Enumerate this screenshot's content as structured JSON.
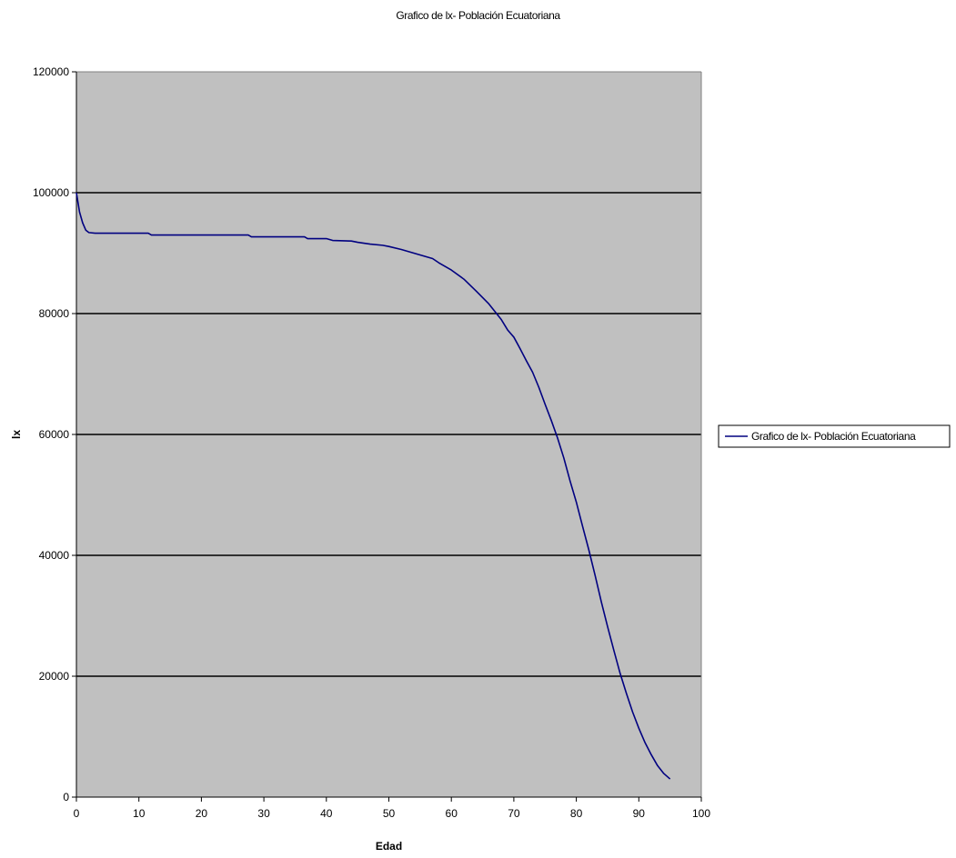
{
  "chart_data": {
    "type": "line",
    "title": "Grafico de lx- Población Ecuatoriana",
    "xlabel": "Edad",
    "ylabel": "lx",
    "xlim": [
      0,
      100
    ],
    "ylim": [
      0,
      120000
    ],
    "xticks": [
      "0",
      "10",
      "20",
      "30",
      "40",
      "50",
      "60",
      "70",
      "80",
      "90",
      "100"
    ],
    "yticks": [
      "0",
      "20000",
      "40000",
      "60000",
      "80000",
      "100000",
      "120000"
    ],
    "grid": "horizontal",
    "legend_position": "right",
    "colors": {
      "plot_background": "#c0c0c0",
      "line": "#000080",
      "grid": "#000000"
    },
    "series": [
      {
        "name": "Grafico de lx- Población Ecuatoriana",
        "x": [
          0,
          0.5,
          1,
          1.5,
          2,
          3,
          5,
          10,
          11.5,
          12,
          20,
          27.5,
          28,
          35,
          36.5,
          37,
          40,
          41,
          44,
          45,
          47,
          49,
          50,
          52,
          55,
          57,
          58,
          60,
          62,
          64,
          66,
          67,
          68,
          69,
          70,
          71,
          72,
          73,
          74,
          75,
          76,
          77,
          78,
          79,
          80,
          81,
          82,
          83,
          84,
          85,
          86,
          87,
          88,
          89,
          90,
          91,
          92,
          93,
          94,
          95
        ],
        "y": [
          100000,
          96800,
          95000,
          93800,
          93400,
          93300,
          93300,
          93300,
          93300,
          93000,
          93000,
          93000,
          92700,
          92700,
          92700,
          92400,
          92400,
          92100,
          92000,
          91800,
          91500,
          91300,
          91100,
          90600,
          89700,
          89100,
          88400,
          87200,
          85700,
          83700,
          81600,
          80300,
          79000,
          77300,
          76100,
          74200,
          72200,
          70300,
          67800,
          65000,
          62300,
          59400,
          56100,
          52300,
          48800,
          44800,
          40900,
          36700,
          32300,
          28200,
          24300,
          20500,
          17200,
          14100,
          11400,
          9000,
          7000,
          5200,
          3900,
          3000
        ]
      }
    ]
  }
}
